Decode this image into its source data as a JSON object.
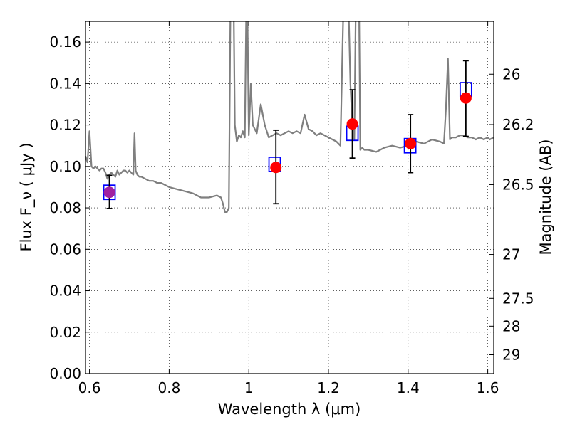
{
  "chart_data": {
    "type": "scatter",
    "title": "",
    "xlabel": "Wavelength  λ (μm)",
    "ylabel": "Flux  F_ν  ( μJy )",
    "y2label": "Magnitude (AB)",
    "xlim": [
      0.59,
      1.615
    ],
    "ylim": [
      0.0,
      0.17
    ],
    "grid": true,
    "x_ticks": [
      0.6,
      0.8,
      1.0,
      1.2,
      1.4,
      1.6
    ],
    "x_tick_labels": [
      "0.6",
      "0.8",
      "1",
      "1.2",
      "1.4",
      "1.6"
    ],
    "y_ticks": [
      0.0,
      0.02,
      0.04,
      0.06,
      0.08,
      0.1,
      0.12,
      0.14,
      0.16
    ],
    "y_tick_labels": [
      "0.00",
      "0.02",
      "0.04",
      "0.06",
      "0.08",
      "0.10",
      "0.12",
      "0.14",
      "0.16"
    ],
    "y2_ticks": [
      {
        "label": "26",
        "flux": 0.1445
      },
      {
        "label": "26.2",
        "flux": 0.1202
      },
      {
        "label": "26.5",
        "flux": 0.0912
      },
      {
        "label": "27",
        "flux": 0.0575
      },
      {
        "label": "27.5",
        "flux": 0.0363
      },
      {
        "label": "28",
        "flux": 0.0229
      },
      {
        "label": "29",
        "flux": 0.0091
      }
    ],
    "series": [
      {
        "type": "line",
        "color": "#7f7f7f",
        "x": [
          0.59,
          0.595,
          0.6,
          0.605,
          0.61,
          0.615,
          0.62,
          0.625,
          0.63,
          0.635,
          0.64,
          0.645,
          0.65,
          0.655,
          0.66,
          0.665,
          0.67,
          0.675,
          0.68,
          0.685,
          0.69,
          0.695,
          0.7,
          0.705,
          0.71,
          0.713,
          0.716,
          0.72,
          0.725,
          0.73,
          0.74,
          0.75,
          0.76,
          0.77,
          0.78,
          0.79,
          0.8,
          0.82,
          0.84,
          0.86,
          0.87,
          0.88,
          0.9,
          0.92,
          0.93,
          0.935,
          0.94,
          0.945,
          0.95,
          0.955,
          0.96,
          0.965,
          0.97,
          0.975,
          0.98,
          0.985,
          0.99,
          0.995,
          1.0,
          1.005,
          1.01,
          1.02,
          1.03,
          1.04,
          1.05,
          1.06,
          1.07,
          1.08,
          1.09,
          1.1,
          1.11,
          1.12,
          1.13,
          1.14,
          1.15,
          1.16,
          1.17,
          1.18,
          1.19,
          1.2,
          1.21,
          1.22,
          1.23,
          1.24,
          1.245,
          1.25,
          1.255,
          1.26,
          1.265,
          1.27,
          1.275,
          1.28,
          1.285,
          1.29,
          1.3,
          1.32,
          1.34,
          1.36,
          1.38,
          1.4,
          1.42,
          1.44,
          1.46,
          1.48,
          1.49,
          1.495,
          1.5,
          1.505,
          1.51,
          1.52,
          1.53,
          1.54,
          1.55,
          1.56,
          1.57,
          1.58,
          1.59,
          1.6,
          1.605,
          1.615
        ],
        "y": [
          0.105,
          0.102,
          0.117,
          0.1,
          0.099,
          0.1,
          0.099,
          0.098,
          0.099,
          0.099,
          0.097,
          0.094,
          0.096,
          0.097,
          0.096,
          0.095,
          0.098,
          0.096,
          0.097,
          0.098,
          0.098,
          0.097,
          0.098,
          0.097,
          0.096,
          0.116,
          0.098,
          0.096,
          0.095,
          0.095,
          0.094,
          0.093,
          0.093,
          0.092,
          0.092,
          0.091,
          0.09,
          0.089,
          0.088,
          0.087,
          0.086,
          0.085,
          0.085,
          0.086,
          0.085,
          0.082,
          0.078,
          0.078,
          0.08,
          0.2,
          0.22,
          0.12,
          0.112,
          0.115,
          0.114,
          0.117,
          0.114,
          0.2,
          0.115,
          0.14,
          0.12,
          0.116,
          0.13,
          0.12,
          0.114,
          0.115,
          0.116,
          0.115,
          0.116,
          0.117,
          0.116,
          0.117,
          0.116,
          0.125,
          0.118,
          0.117,
          0.115,
          0.116,
          0.115,
          0.114,
          0.113,
          0.112,
          0.11,
          0.2,
          0.22,
          0.18,
          0.14,
          0.12,
          0.113,
          0.2,
          0.22,
          0.108,
          0.109,
          0.108,
          0.108,
          0.107,
          0.109,
          0.11,
          0.109,
          0.11,
          0.112,
          0.111,
          0.113,
          0.112,
          0.111,
          0.128,
          0.152,
          0.113,
          0.114,
          0.114,
          0.115,
          0.115,
          0.114,
          0.114,
          0.113,
          0.114,
          0.113,
          0.114,
          0.113,
          0.114
        ]
      },
      {
        "type": "open-square",
        "color": "#0000ff",
        "x": [
          0.65,
          1.065,
          1.26,
          1.405,
          1.545
        ],
        "y": [
          0.0875,
          0.101,
          0.116,
          0.11,
          0.137
        ]
      },
      {
        "type": "errorbar",
        "color": "#ff0000",
        "x": [
          0.65,
          1.068,
          1.26,
          1.406,
          1.545
        ],
        "y": [
          0.0875,
          0.0995,
          0.1205,
          0.111,
          0.133
        ],
        "yerr_low": [
          0.0078,
          0.0175,
          0.0165,
          0.014,
          0.0185
        ],
        "yerr_high": [
          0.0082,
          0.018,
          0.0165,
          0.014,
          0.018
        ]
      }
    ]
  }
}
